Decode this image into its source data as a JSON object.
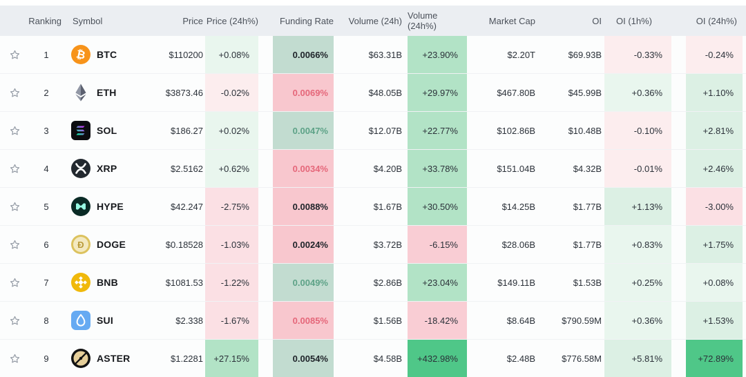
{
  "colors": {
    "header_bg": "#ebeef2",
    "row_bg": "#fcfdfd",
    "green_light": "#e9f6ee",
    "green_medium": "#b2e3c6",
    "green_strong": "#4fc788",
    "red_light": "#fcedee",
    "red_medium": "#fbe0e4",
    "red_strong": "#f9cdd4",
    "funding_green_bg": "#c2dcd0",
    "funding_pink_bg": "#f8c7ce",
    "funding_red_text": "#e5677a",
    "funding_green_text": "#5da287",
    "text_dark": "#2b3139"
  },
  "table": {
    "columns": [
      {
        "key": "star",
        "label": ""
      },
      {
        "key": "ranking",
        "label": "Ranking"
      },
      {
        "key": "symbol",
        "label": "Symbol"
      },
      {
        "key": "price",
        "label": "Price"
      },
      {
        "key": "price_24h",
        "label": "Price (24h%)"
      },
      {
        "key": "funding_rate",
        "label": "Funding Rate"
      },
      {
        "key": "volume_24h",
        "label": "Volume (24h)"
      },
      {
        "key": "volume_24h_pct",
        "label": "Volume (24h%)"
      },
      {
        "key": "market_cap",
        "label": "Market Cap"
      },
      {
        "key": "oi",
        "label": "OI"
      },
      {
        "key": "oi_1h",
        "label": "OI (1h%)"
      },
      {
        "key": "oi_24h",
        "label": "OI (24h%)"
      }
    ],
    "rows": [
      {
        "ranking": "1",
        "symbol": "BTC",
        "icon": "btc-icon",
        "price": "$110200",
        "price_24h": {
          "value": "+0.08%",
          "tone": "g1"
        },
        "funding_rate": {
          "value": "0.0066%",
          "tone": "fg",
          "text": "dark"
        },
        "volume_24h": "$63.31B",
        "volume_24h_pct": {
          "value": "+23.90%",
          "tone": "g3"
        },
        "market_cap": "$2.20T",
        "oi": "$69.93B",
        "oi_1h": {
          "value": "-0.33%",
          "tone": "r1"
        },
        "oi_24h": {
          "value": "-0.24%",
          "tone": "r1"
        }
      },
      {
        "ranking": "2",
        "symbol": "ETH",
        "icon": "eth-icon",
        "price": "$3873.46",
        "price_24h": {
          "value": "-0.02%",
          "tone": "r1"
        },
        "funding_rate": {
          "value": "0.0069%",
          "tone": "fp",
          "text": "red"
        },
        "volume_24h": "$48.05B",
        "volume_24h_pct": {
          "value": "+29.97%",
          "tone": "g3"
        },
        "market_cap": "$467.80B",
        "oi": "$45.99B",
        "oi_1h": {
          "value": "+0.36%",
          "tone": "g1"
        },
        "oi_24h": {
          "value": "+1.10%",
          "tone": "g2"
        }
      },
      {
        "ranking": "3",
        "symbol": "SOL",
        "icon": "sol-icon",
        "price": "$186.27",
        "price_24h": {
          "value": "+0.02%",
          "tone": "g1"
        },
        "funding_rate": {
          "value": "0.0047%",
          "tone": "fg",
          "text": "green"
        },
        "volume_24h": "$12.07B",
        "volume_24h_pct": {
          "value": "+22.77%",
          "tone": "g3"
        },
        "market_cap": "$102.86B",
        "oi": "$10.48B",
        "oi_1h": {
          "value": "-0.10%",
          "tone": "r1"
        },
        "oi_24h": {
          "value": "+2.81%",
          "tone": "g2"
        }
      },
      {
        "ranking": "4",
        "symbol": "XRP",
        "icon": "xrp-icon",
        "price": "$2.5162",
        "price_24h": {
          "value": "+0.62%",
          "tone": "g1"
        },
        "funding_rate": {
          "value": "0.0034%",
          "tone": "fp",
          "text": "red"
        },
        "volume_24h": "$4.20B",
        "volume_24h_pct": {
          "value": "+33.78%",
          "tone": "g3"
        },
        "market_cap": "$151.04B",
        "oi": "$4.32B",
        "oi_1h": {
          "value": "-0.01%",
          "tone": "r1"
        },
        "oi_24h": {
          "value": "+2.46%",
          "tone": "g2"
        }
      },
      {
        "ranking": "5",
        "symbol": "HYPE",
        "icon": "hype-icon",
        "price": "$42.247",
        "price_24h": {
          "value": "-2.75%",
          "tone": "r2"
        },
        "funding_rate": {
          "value": "0.0088%",
          "tone": "fp",
          "text": "dark"
        },
        "volume_24h": "$1.67B",
        "volume_24h_pct": {
          "value": "+30.50%",
          "tone": "g3"
        },
        "market_cap": "$14.25B",
        "oi": "$1.77B",
        "oi_1h": {
          "value": "+1.13%",
          "tone": "g2"
        },
        "oi_24h": {
          "value": "-3.00%",
          "tone": "r2"
        }
      },
      {
        "ranking": "6",
        "symbol": "DOGE",
        "icon": "doge-icon",
        "price": "$0.18528",
        "price_24h": {
          "value": "-1.03%",
          "tone": "r2"
        },
        "funding_rate": {
          "value": "0.0024%",
          "tone": "fp",
          "text": "dark"
        },
        "volume_24h": "$3.72B",
        "volume_24h_pct": {
          "value": "-6.15%",
          "tone": "r3"
        },
        "market_cap": "$28.06B",
        "oi": "$1.77B",
        "oi_1h": {
          "value": "+0.83%",
          "tone": "g1"
        },
        "oi_24h": {
          "value": "+1.75%",
          "tone": "g2"
        }
      },
      {
        "ranking": "7",
        "symbol": "BNB",
        "icon": "bnb-icon",
        "price": "$1081.53",
        "price_24h": {
          "value": "-1.22%",
          "tone": "r2"
        },
        "funding_rate": {
          "value": "0.0049%",
          "tone": "fg",
          "text": "green"
        },
        "volume_24h": "$2.86B",
        "volume_24h_pct": {
          "value": "+23.04%",
          "tone": "g3"
        },
        "market_cap": "$149.11B",
        "oi": "$1.53B",
        "oi_1h": {
          "value": "+0.25%",
          "tone": "g1"
        },
        "oi_24h": {
          "value": "+0.08%",
          "tone": "g1"
        }
      },
      {
        "ranking": "8",
        "symbol": "SUI",
        "icon": "sui-icon",
        "price": "$2.338",
        "price_24h": {
          "value": "-1.67%",
          "tone": "r2"
        },
        "funding_rate": {
          "value": "0.0085%",
          "tone": "fp",
          "text": "red"
        },
        "volume_24h": "$1.56B",
        "volume_24h_pct": {
          "value": "-18.42%",
          "tone": "r3"
        },
        "market_cap": "$8.64B",
        "oi": "$790.59M",
        "oi_1h": {
          "value": "+0.36%",
          "tone": "g1"
        },
        "oi_24h": {
          "value": "+1.53%",
          "tone": "g2"
        }
      },
      {
        "ranking": "9",
        "symbol": "ASTER",
        "icon": "aster-icon",
        "price": "$1.2281",
        "price_24h": {
          "value": "+27.15%",
          "tone": "g3"
        },
        "funding_rate": {
          "value": "0.0054%",
          "tone": "fg",
          "text": "dark"
        },
        "volume_24h": "$4.58B",
        "volume_24h_pct": {
          "value": "+432.98%",
          "tone": "g4"
        },
        "market_cap": "$2.48B",
        "oi": "$776.58M",
        "oi_1h": {
          "value": "+5.81%",
          "tone": "g2"
        },
        "oi_24h": {
          "value": "+72.89%",
          "tone": "g4"
        }
      }
    ]
  }
}
